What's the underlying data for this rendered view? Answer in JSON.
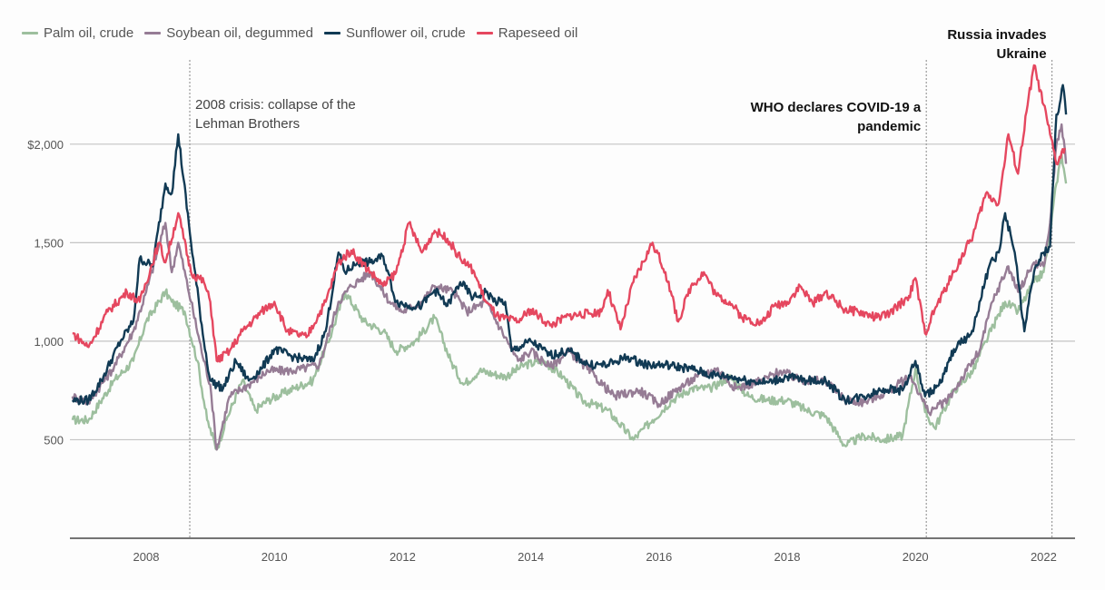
{
  "chart_data": {
    "type": "line",
    "title": "",
    "xlabel": "",
    "ylabel": "",
    "xlim": [
      2006.81,
      2022.5
    ],
    "ylim": [
      0,
      2500
    ],
    "grid": true,
    "legend_position": "top-left",
    "x_ticks": [
      {
        "value": 2008,
        "label": "2008"
      },
      {
        "value": 2010,
        "label": "2010"
      },
      {
        "value": 2012,
        "label": "2012"
      },
      {
        "value": 2014,
        "label": "2014"
      },
      {
        "value": 2016,
        "label": "2016"
      },
      {
        "value": 2018,
        "label": "2018"
      },
      {
        "value": 2020,
        "label": "2020"
      },
      {
        "value": 2022,
        "label": "2022"
      }
    ],
    "y_ticks": [
      {
        "value": 500,
        "label": "500"
      },
      {
        "value": 1000,
        "label": "1,000"
      },
      {
        "value": 1500,
        "label": "1,500"
      },
      {
        "value": 2000,
        "label": "$2,000"
      }
    ],
    "annotations": [
      {
        "x": 2008.68,
        "lines": [
          "2008 crisis: collapse of the",
          "Lehman Brothers"
        ],
        "style": "normal",
        "align": "left"
      },
      {
        "x": 2020.17,
        "lines": [
          "WHO declares COVID-19 a",
          "pandemic"
        ],
        "style": "bold",
        "align": "right"
      },
      {
        "x": 2022.13,
        "lines": [
          "Russia invades",
          "Ukraine"
        ],
        "style": "bold",
        "align": "right"
      }
    ],
    "series": [
      {
        "name": "Palm oil, crude",
        "color": "#9dbf9e",
        "points": [
          [
            2006.85,
            600
          ],
          [
            2007.1,
            600
          ],
          [
            2007.5,
            800
          ],
          [
            2007.8,
            900
          ],
          [
            2008.0,
            1100
          ],
          [
            2008.3,
            1250
          ],
          [
            2008.4,
            1200
          ],
          [
            2008.6,
            1150
          ],
          [
            2008.8,
            900
          ],
          [
            2008.95,
            600
          ],
          [
            2009.1,
            450
          ],
          [
            2009.25,
            600
          ],
          [
            2009.5,
            800
          ],
          [
            2009.7,
            650
          ],
          [
            2009.9,
            700
          ],
          [
            2010.3,
            760
          ],
          [
            2010.6,
            800
          ],
          [
            2010.9,
            1050
          ],
          [
            2011.1,
            1250
          ],
          [
            2011.4,
            1100
          ],
          [
            2011.7,
            1050
          ],
          [
            2011.9,
            950
          ],
          [
            2012.2,
            1000
          ],
          [
            2012.5,
            1120
          ],
          [
            2012.75,
            900
          ],
          [
            2012.95,
            780
          ],
          [
            2013.2,
            850
          ],
          [
            2013.6,
            820
          ],
          [
            2013.9,
            880
          ],
          [
            2014.2,
            900
          ],
          [
            2014.5,
            820
          ],
          [
            2014.8,
            700
          ],
          [
            2015.2,
            650
          ],
          [
            2015.6,
            500
          ],
          [
            2015.9,
            600
          ],
          [
            2016.2,
            700
          ],
          [
            2016.5,
            760
          ],
          [
            2016.8,
            760
          ],
          [
            2017.1,
            820
          ],
          [
            2017.4,
            720
          ],
          [
            2017.7,
            700
          ],
          [
            2018.0,
            700
          ],
          [
            2018.3,
            650
          ],
          [
            2018.6,
            620
          ],
          [
            2018.9,
            470
          ],
          [
            2019.2,
            520
          ],
          [
            2019.5,
            500
          ],
          [
            2019.8,
            520
          ],
          [
            2020.0,
            860
          ],
          [
            2020.15,
            640
          ],
          [
            2020.3,
            560
          ],
          [
            2020.6,
            750
          ],
          [
            2020.9,
            850
          ],
          [
            2021.1,
            1000
          ],
          [
            2021.4,
            1200
          ],
          [
            2021.6,
            1150
          ],
          [
            2021.85,
            1300
          ],
          [
            2022.0,
            1350
          ],
          [
            2022.1,
            1550
          ],
          [
            2022.2,
            1800
          ],
          [
            2022.28,
            1950
          ],
          [
            2022.35,
            1800
          ]
        ]
      },
      {
        "name": "Soybean oil, degummed",
        "color": "#967c95",
        "points": [
          [
            2006.85,
            720
          ],
          [
            2007.1,
            690
          ],
          [
            2007.5,
            870
          ],
          [
            2007.8,
            1050
          ],
          [
            2008.0,
            1250
          ],
          [
            2008.3,
            1600
          ],
          [
            2008.4,
            1350
          ],
          [
            2008.5,
            1500
          ],
          [
            2008.7,
            1200
          ],
          [
            2008.9,
            900
          ],
          [
            2009.0,
            780
          ],
          [
            2009.1,
            450
          ],
          [
            2009.3,
            720
          ],
          [
            2009.6,
            780
          ],
          [
            2009.9,
            850
          ],
          [
            2010.3,
            850
          ],
          [
            2010.7,
            880
          ],
          [
            2011.0,
            1200
          ],
          [
            2011.2,
            1280
          ],
          [
            2011.5,
            1350
          ],
          [
            2011.8,
            1200
          ],
          [
            2012.0,
            1150
          ],
          [
            2012.3,
            1200
          ],
          [
            2012.5,
            1280
          ],
          [
            2012.8,
            1250
          ],
          [
            2013.0,
            1150
          ],
          [
            2013.3,
            1200
          ],
          [
            2013.6,
            1020
          ],
          [
            2013.8,
            900
          ],
          [
            2014.0,
            950
          ],
          [
            2014.3,
            870
          ],
          [
            2014.6,
            950
          ],
          [
            2015.0,
            820
          ],
          [
            2015.3,
            720
          ],
          [
            2015.7,
            750
          ],
          [
            2016.0,
            680
          ],
          [
            2016.3,
            760
          ],
          [
            2016.6,
            820
          ],
          [
            2016.9,
            860
          ],
          [
            2017.2,
            760
          ],
          [
            2017.6,
            800
          ],
          [
            2017.9,
            850
          ],
          [
            2018.2,
            800
          ],
          [
            2018.6,
            800
          ],
          [
            2018.9,
            700
          ],
          [
            2019.2,
            690
          ],
          [
            2019.6,
            750
          ],
          [
            2019.9,
            820
          ],
          [
            2020.0,
            780
          ],
          [
            2020.2,
            640
          ],
          [
            2020.5,
            700
          ],
          [
            2020.8,
            850
          ],
          [
            2021.0,
            950
          ],
          [
            2021.2,
            1200
          ],
          [
            2021.45,
            1380
          ],
          [
            2021.6,
            1250
          ],
          [
            2021.85,
            1400
          ],
          [
            2022.0,
            1380
          ],
          [
            2022.1,
            1600
          ],
          [
            2022.2,
            2000
          ],
          [
            2022.28,
            2100
          ],
          [
            2022.35,
            1900
          ]
        ]
      },
      {
        "name": "Sunflower oil, crude",
        "color": "#113a54",
        "points": [
          [
            2006.85,
            700
          ],
          [
            2007.1,
            700
          ],
          [
            2007.3,
            800
          ],
          [
            2007.6,
            1000
          ],
          [
            2007.8,
            1100
          ],
          [
            2007.9,
            1420
          ],
          [
            2008.1,
            1380
          ],
          [
            2008.3,
            1800
          ],
          [
            2008.4,
            1750
          ],
          [
            2008.5,
            2050
          ],
          [
            2008.7,
            1500
          ],
          [
            2008.9,
            1000
          ],
          [
            2009.0,
            800
          ],
          [
            2009.2,
            760
          ],
          [
            2009.4,
            900
          ],
          [
            2009.6,
            800
          ],
          [
            2009.8,
            860
          ],
          [
            2010.0,
            960
          ],
          [
            2010.3,
            920
          ],
          [
            2010.6,
            900
          ],
          [
            2010.8,
            1050
          ],
          [
            2011.0,
            1450
          ],
          [
            2011.1,
            1350
          ],
          [
            2011.3,
            1400
          ],
          [
            2011.5,
            1400
          ],
          [
            2011.7,
            1430
          ],
          [
            2011.9,
            1200
          ],
          [
            2012.1,
            1180
          ],
          [
            2012.3,
            1180
          ],
          [
            2012.5,
            1260
          ],
          [
            2012.7,
            1180
          ],
          [
            2012.9,
            1300
          ],
          [
            2013.1,
            1220
          ],
          [
            2013.3,
            1250
          ],
          [
            2013.45,
            1200
          ],
          [
            2013.6,
            1200
          ],
          [
            2013.7,
            950
          ],
          [
            2014.0,
            1000
          ],
          [
            2014.3,
            930
          ],
          [
            2014.6,
            950
          ],
          [
            2014.9,
            880
          ],
          [
            2015.2,
            880
          ],
          [
            2015.5,
            920
          ],
          [
            2015.8,
            880
          ],
          [
            2016.1,
            880
          ],
          [
            2016.5,
            860
          ],
          [
            2016.8,
            830
          ],
          [
            2017.1,
            820
          ],
          [
            2017.4,
            800
          ],
          [
            2017.7,
            790
          ],
          [
            2018.0,
            820
          ],
          [
            2018.3,
            800
          ],
          [
            2018.6,
            800
          ],
          [
            2018.9,
            700
          ],
          [
            2019.2,
            720
          ],
          [
            2019.5,
            760
          ],
          [
            2019.8,
            750
          ],
          [
            2020.0,
            900
          ],
          [
            2020.15,
            720
          ],
          [
            2020.4,
            790
          ],
          [
            2020.6,
            960
          ],
          [
            2020.9,
            1050
          ],
          [
            2021.0,
            1200
          ],
          [
            2021.15,
            1380
          ],
          [
            2021.3,
            1450
          ],
          [
            2021.4,
            1650
          ],
          [
            2021.55,
            1450
          ],
          [
            2021.7,
            1050
          ],
          [
            2021.85,
            1350
          ],
          [
            2022.0,
            1450
          ],
          [
            2022.1,
            1480
          ],
          [
            2022.2,
            2150
          ],
          [
            2022.25,
            2200
          ],
          [
            2022.3,
            2300
          ],
          [
            2022.35,
            2150
          ]
        ]
      },
      {
        "name": "Rapeseed oil",
        "color": "#e5475f",
        "points": [
          [
            2006.85,
            1040
          ],
          [
            2007.1,
            970
          ],
          [
            2007.4,
            1150
          ],
          [
            2007.7,
            1250
          ],
          [
            2007.9,
            1200
          ],
          [
            2008.2,
            1500
          ],
          [
            2008.3,
            1400
          ],
          [
            2008.5,
            1650
          ],
          [
            2008.7,
            1350
          ],
          [
            2008.9,
            1300
          ],
          [
            2009.0,
            1200
          ],
          [
            2009.1,
            900
          ],
          [
            2009.3,
            950
          ],
          [
            2009.5,
            1050
          ],
          [
            2009.8,
            1150
          ],
          [
            2010.0,
            1200
          ],
          [
            2010.2,
            1050
          ],
          [
            2010.5,
            1020
          ],
          [
            2010.8,
            1200
          ],
          [
            2011.0,
            1400
          ],
          [
            2011.2,
            1460
          ],
          [
            2011.5,
            1350
          ],
          [
            2011.7,
            1280
          ],
          [
            2011.9,
            1350
          ],
          [
            2012.1,
            1600
          ],
          [
            2012.3,
            1450
          ],
          [
            2012.5,
            1560
          ],
          [
            2012.7,
            1520
          ],
          [
            2012.9,
            1420
          ],
          [
            2013.1,
            1360
          ],
          [
            2013.3,
            1200
          ],
          [
            2013.5,
            1120
          ],
          [
            2013.8,
            1100
          ],
          [
            2014.0,
            1160
          ],
          [
            2014.3,
            1080
          ],
          [
            2014.6,
            1130
          ],
          [
            2014.9,
            1140
          ],
          [
            2015.1,
            1150
          ],
          [
            2015.2,
            1260
          ],
          [
            2015.4,
            1060
          ],
          [
            2015.6,
            1300
          ],
          [
            2015.9,
            1500
          ],
          [
            2016.1,
            1350
          ],
          [
            2016.3,
            1100
          ],
          [
            2016.5,
            1280
          ],
          [
            2016.7,
            1350
          ],
          [
            2016.9,
            1230
          ],
          [
            2017.1,
            1200
          ],
          [
            2017.3,
            1120
          ],
          [
            2017.6,
            1090
          ],
          [
            2017.8,
            1180
          ],
          [
            2018.0,
            1200
          ],
          [
            2018.2,
            1280
          ],
          [
            2018.4,
            1190
          ],
          [
            2018.6,
            1250
          ],
          [
            2018.9,
            1160
          ],
          [
            2019.1,
            1150
          ],
          [
            2019.4,
            1120
          ],
          [
            2019.6,
            1140
          ],
          [
            2019.9,
            1230
          ],
          [
            2020.0,
            1320
          ],
          [
            2020.15,
            1040
          ],
          [
            2020.3,
            1160
          ],
          [
            2020.6,
            1350
          ],
          [
            2020.9,
            1540
          ],
          [
            2021.1,
            1750
          ],
          [
            2021.3,
            1700
          ],
          [
            2021.45,
            2050
          ],
          [
            2021.6,
            1850
          ],
          [
            2021.75,
            2200
          ],
          [
            2021.85,
            2400
          ],
          [
            2022.0,
            2200
          ],
          [
            2022.1,
            2050
          ],
          [
            2022.2,
            1900
          ],
          [
            2022.33,
            1980
          ]
        ]
      }
    ]
  }
}
